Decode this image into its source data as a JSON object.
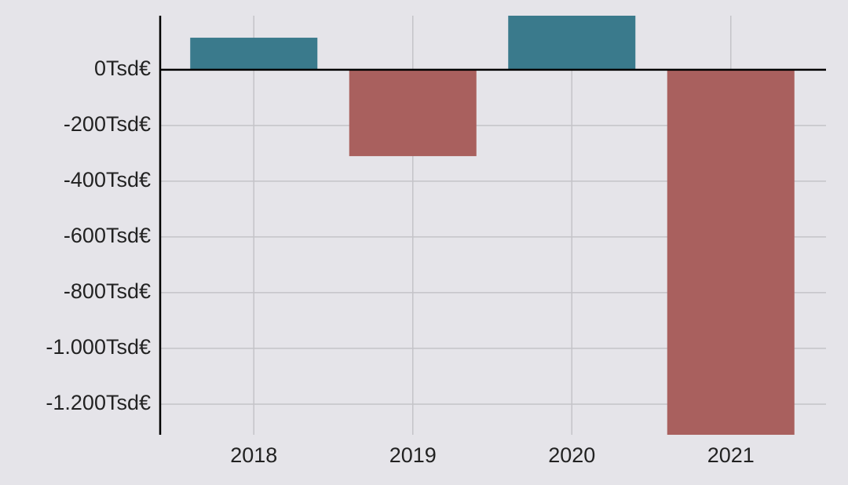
{
  "chart_data": {
    "type": "bar",
    "categories": [
      "2018",
      "2019",
      "2020",
      "2021"
    ],
    "values": [
      115,
      -310,
      194,
      -1310
    ],
    "positive_color": "#3a7a8c",
    "negative_color": "#a9605e",
    "ylim": [
      -1310,
      194
    ],
    "yticks": [
      {
        "value": 0,
        "label": "0Tsd€"
      },
      {
        "value": -200,
        "label": "-200Tsd€"
      },
      {
        "value": -400,
        "label": "-400Tsd€"
      },
      {
        "value": -600,
        "label": "-600Tsd€"
      },
      {
        "value": -800,
        "label": "-800Tsd€"
      },
      {
        "value": -1000,
        "label": "-1.000Tsd€"
      },
      {
        "value": -1200,
        "label": "-1.200Tsd€"
      }
    ],
    "grid": true
  }
}
